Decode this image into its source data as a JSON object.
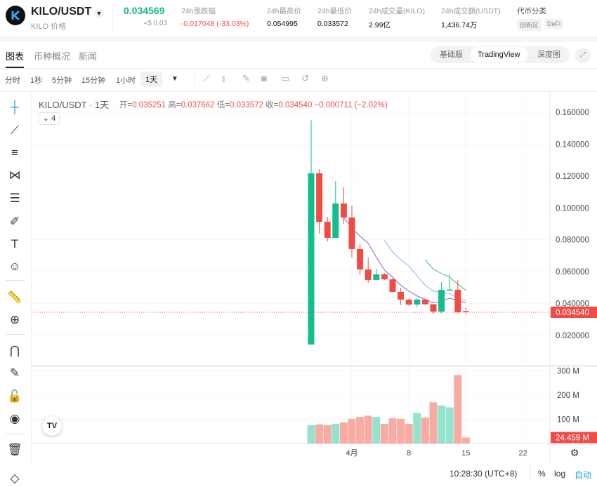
{
  "header": {
    "pair": "KILO/USDT",
    "subtitle": "KILO 价格",
    "last_price": "0.034569",
    "usd_price": "≈$ 0.03",
    "stats": [
      {
        "label": "24h涨跌幅",
        "value": "-0.017048 (-33.03%)"
      },
      {
        "label": "24h最高价",
        "value": "0.054995"
      },
      {
        "label": "24h最低价",
        "value": "0.033572"
      },
      {
        "label": "24h成交量(KILO)",
        "value": "2.99亿"
      },
      {
        "label": "24h成交额(USDT)",
        "value": "1,436.74万"
      }
    ],
    "category_label": "代币分类",
    "tags": [
      "创新区",
      "DeFi"
    ]
  },
  "tabs": [
    "图表",
    "币种概况",
    "新闻"
  ],
  "views": [
    "基础版",
    "TradingView",
    "深度图"
  ],
  "timeframes": [
    "分时",
    "1秒",
    "5分钟",
    "15分钟",
    "1小时",
    "1天"
  ],
  "legend": {
    "title": "KILO/USDT · 1天",
    "open_k": "开=",
    "open": "0.035251",
    "high_k": "高=",
    "high": "0.037662",
    "low_k": "低=",
    "low": "0.033572",
    "close_k": "收=",
    "close": "0.034540",
    "change": "−0.000711 (−2.02%)",
    "indicators_count": "4"
  },
  "logo_text": "TV",
  "footer": {
    "time": "10:28:30 (UTC+8)",
    "percent": "%",
    "log": "log",
    "auto": "自动"
  },
  "colors": {
    "up": "#12bf8c",
    "down": "#f04b44",
    "vol_up": "#93e3cd",
    "vol_down": "#f8aba3",
    "ma1": "#a374d6",
    "ma2": "#9dbde8",
    "ma3": "#6cc06e",
    "accent": "#1ea0d6"
  },
  "chart_data": {
    "type": "candlestick",
    "dates": [
      "3/27",
      "3/28",
      "3/29",
      "3/30",
      "3/31",
      "4/1",
      "4/2",
      "4/3",
      "4/4",
      "4/5",
      "4/6",
      "4/7",
      "4/8",
      "4/9",
      "4/10",
      "4/11",
      "4/12",
      "4/13",
      "4/14",
      "4/15"
    ],
    "open": [
      0.0143,
      0.1217,
      0.0913,
      0.0812,
      0.1028,
      0.094,
      0.0742,
      0.0614,
      0.0548,
      0.0583,
      0.0552,
      0.0473,
      0.0425,
      0.0394,
      0.0425,
      0.0396,
      0.035,
      0.0486,
      0.0486,
      0.035251
    ],
    "high": [
      0.155,
      0.1243,
      0.0944,
      0.1169,
      0.1129,
      0.1014,
      0.0777,
      0.0688,
      0.0618,
      0.059,
      0.056,
      0.05,
      0.0432,
      0.0432,
      0.043,
      0.0396,
      0.0535,
      0.0583,
      0.0548,
      0.037662
    ],
    "low": [
      0.0143,
      0.0838,
      0.079,
      0.0812,
      0.09,
      0.0689,
      0.0579,
      0.053,
      0.0548,
      0.0548,
      0.0468,
      0.039,
      0.0385,
      0.038,
      0.0389,
      0.0335,
      0.034,
      0.048,
      0.034,
      0.033572
    ],
    "close": [
      0.1217,
      0.0913,
      0.0812,
      0.1028,
      0.094,
      0.0742,
      0.0614,
      0.0548,
      0.0583,
      0.0552,
      0.0473,
      0.0425,
      0.0394,
      0.0425,
      0.0396,
      0.035,
      0.0486,
      0.0488,
      0.0346,
      0.03454
    ],
    "volume_m": [
      76,
      79,
      76,
      81,
      87,
      102,
      110,
      115,
      110,
      81,
      104,
      102,
      81,
      126,
      107,
      170,
      157,
      149,
      283,
      24.459
    ],
    "ma_lines": [
      {
        "start": 4,
        "values": [
          0.094,
          0.0874,
          0.0822,
          0.0779,
          0.069,
          0.061,
          0.0566,
          0.0515,
          0.0478,
          0.0448,
          0.0426,
          0.0404,
          0.0415,
          0.0434,
          0.0419,
          0.0404
        ]
      },
      {
        "start": 9,
        "values": [
          0.0796,
          0.0723,
          0.0676,
          0.0635,
          0.0573,
          0.0515,
          0.0478,
          0.047,
          0.0463,
          0.0434,
          0.0419
        ]
      },
      {
        "start": 14,
        "values": [
          0.0673,
          0.0617,
          0.0588,
          0.0566,
          0.0522,
          0.0482
        ]
      }
    ],
    "y_ticks": [
      "0.160000",
      "0.140000",
      "0.120000",
      "0.100000",
      "0.080000",
      "0.060000",
      "0.040000",
      "0.020000"
    ],
    "y_range": [
      0.0,
      0.17
    ],
    "vol_ticks": [
      "300 M",
      "200 M",
      "100 M"
    ],
    "x_ticks": [
      {
        "label": "4月",
        "date": "4/1"
      },
      {
        "label": "8",
        "date": "4/8"
      },
      {
        "label": "15",
        "date": "4/15"
      },
      {
        "label": "22",
        "date": "4/22"
      }
    ],
    "last_price_label": "0.034540",
    "last_volume_label": "24.459 M"
  }
}
